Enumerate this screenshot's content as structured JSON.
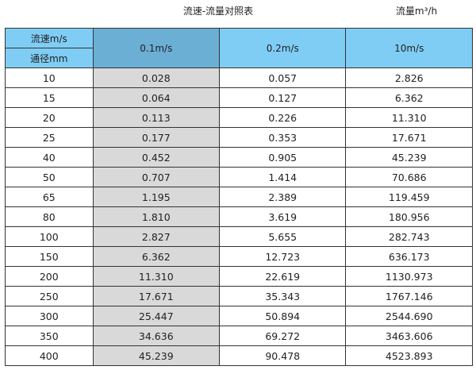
{
  "title": "流速-流量对照表",
  "unit_label": "流量m³/h",
  "colors": {
    "header": "#7fcdf4",
    "header_highlight": "#6bafd5",
    "column_highlight": "#d9d9d9"
  },
  "table": {
    "corner_top": "流速m/s",
    "corner_bottom": "通径mm",
    "columns": [
      "0.1m/s",
      "0.2m/s",
      "10m/s"
    ],
    "rows": [
      [
        "10",
        "0.028",
        "0.057",
        "2.826"
      ],
      [
        "15",
        "0.064",
        "0.127",
        "6.362"
      ],
      [
        "20",
        "0.113",
        "0.226",
        "11.310"
      ],
      [
        "25",
        "0.177",
        "0.353",
        "17.671"
      ],
      [
        "40",
        "0.452",
        "0.905",
        "45.239"
      ],
      [
        "50",
        "0.707",
        "1.414",
        "70.686"
      ],
      [
        "65",
        "1.195",
        "2.389",
        "119.459"
      ],
      [
        "80",
        "1.810",
        "3.619",
        "180.956"
      ],
      [
        "100",
        "2.827",
        "5.655",
        "282.743"
      ],
      [
        "150",
        "6.362",
        "12.723",
        "636.173"
      ],
      [
        "200",
        "11.310",
        "22.619",
        "1130.973"
      ],
      [
        "250",
        "17.671",
        "35.343",
        "1767.146"
      ],
      [
        "300",
        "25.447",
        "50.894",
        "2544.690"
      ],
      [
        "350",
        "34.636",
        "69.272",
        "3463.606"
      ],
      [
        "400",
        "45.239",
        "90.478",
        "4523.893"
      ]
    ]
  }
}
